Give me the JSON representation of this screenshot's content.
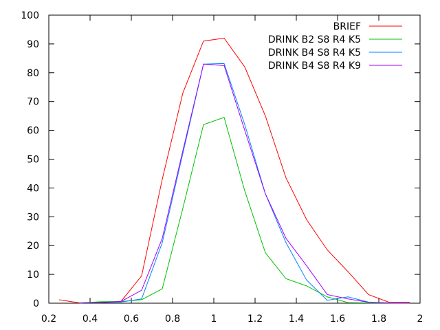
{
  "chart_data": {
    "type": "line",
    "title": "",
    "xlabel": "",
    "ylabel": "",
    "xlim": [
      0.2,
      2
    ],
    "ylim": [
      0,
      100
    ],
    "x_ticks": [
      0.2,
      0.4,
      0.6,
      0.8,
      1,
      1.2,
      1.4,
      1.6,
      1.8,
      2
    ],
    "y_ticks": [
      0,
      10,
      20,
      30,
      40,
      50,
      60,
      70,
      80,
      90,
      100
    ],
    "x_tick_labels": [
      "0.2",
      "0.4",
      "0.6",
      "0.8",
      "1",
      "1.2",
      "1.4",
      "1.6",
      "1.8",
      "2"
    ],
    "y_tick_labels": [
      "0",
      "10",
      "20",
      "30",
      "40",
      "50",
      "60",
      "70",
      "80",
      "90",
      "100"
    ],
    "grid": false,
    "legend_position": "top-right",
    "series": [
      {
        "name": "BRIEF",
        "color": "#ff0000",
        "x": [
          0.25,
          0.35,
          0.45,
          0.55,
          0.65,
          0.75,
          0.85,
          0.95,
          1.05,
          1.15,
          1.25,
          1.35,
          1.45,
          1.55,
          1.65,
          1.75,
          1.85,
          1.95
        ],
        "y": [
          1.2,
          0.1,
          0.3,
          0.6,
          9.5,
          43,
          73,
          91,
          92,
          82,
          65,
          43.5,
          29,
          18.5,
          11,
          3,
          0.3,
          0.3
        ]
      },
      {
        "name": "DRINK B2 S8 R4 K5",
        "color": "#00c000",
        "x": [
          0.35,
          0.45,
          0.55,
          0.65,
          0.75,
          0.85,
          0.95,
          1.05,
          1.15,
          1.25,
          1.35,
          1.45,
          1.55,
          1.65,
          1.75,
          1.85,
          1.95
        ],
        "y": [
          0.1,
          0.5,
          0.6,
          1.2,
          5,
          33,
          62,
          64.5,
          39,
          17.5,
          8.5,
          6,
          2.2,
          0.2,
          0.1,
          0.1,
          0.1
        ]
      },
      {
        "name": "DRINK B4 S8 R4 K5",
        "color": "#0080ff",
        "x": [
          0.35,
          0.45,
          0.55,
          0.65,
          0.75,
          0.85,
          0.95,
          1.05,
          1.15,
          1.25,
          1.35,
          1.45,
          1.55,
          1.65,
          1.75,
          1.85,
          1.95
        ],
        "y": [
          0.1,
          0.2,
          0.4,
          1.5,
          21,
          52,
          83,
          83.2,
          62,
          38,
          21,
          8,
          1,
          2.2,
          0.4,
          0.1,
          0.1
        ]
      },
      {
        "name": "DRINK B4 S8 R4 K9",
        "color": "#a000ff",
        "x": [
          0.35,
          0.45,
          0.55,
          0.65,
          0.75,
          0.85,
          0.95,
          1.05,
          1.15,
          1.25,
          1.35,
          1.45,
          1.55,
          1.65,
          1.75,
          1.85,
          1.95
        ],
        "y": [
          0.1,
          0.2,
          0.6,
          4.5,
          22.5,
          53,
          83,
          82.5,
          60,
          38,
          22.5,
          13,
          3,
          1.5,
          0.3,
          0.1,
          0.1
        ]
      }
    ]
  }
}
